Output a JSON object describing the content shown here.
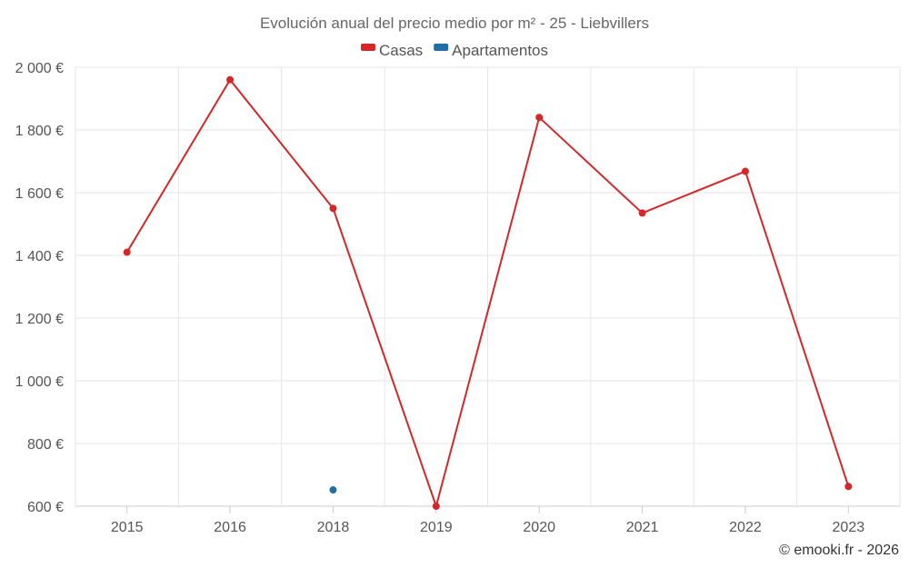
{
  "chart_data": {
    "type": "line",
    "title": "Evolución anual del precio medio por m² - 25 - Liebvillers",
    "categories": [
      "2015",
      "2016",
      "2018",
      "2019",
      "2020",
      "2021",
      "2022",
      "2023"
    ],
    "series": [
      {
        "name": "Casas",
        "color": "#d62728",
        "values": [
          1410,
          1960,
          1550,
          600,
          1840,
          1535,
          1668,
          663
        ]
      },
      {
        "name": "Apartamentos",
        "color": "#1f6fa8",
        "values": [
          null,
          null,
          652,
          null,
          null,
          null,
          null,
          null
        ]
      }
    ],
    "ylim": [
      600,
      2000
    ],
    "yticks": [
      600,
      800,
      1000,
      1200,
      1400,
      1600,
      1800,
      2000
    ],
    "ytick_labels": [
      "600 €",
      "800 €",
      "1 000 €",
      "1 200 €",
      "1 400 €",
      "1 600 €",
      "1 800 €",
      "2 000 €"
    ],
    "xlabel": "",
    "ylabel": "",
    "grid": true,
    "legend": "top-center",
    "credit": "© emooki.fr - 2026"
  }
}
